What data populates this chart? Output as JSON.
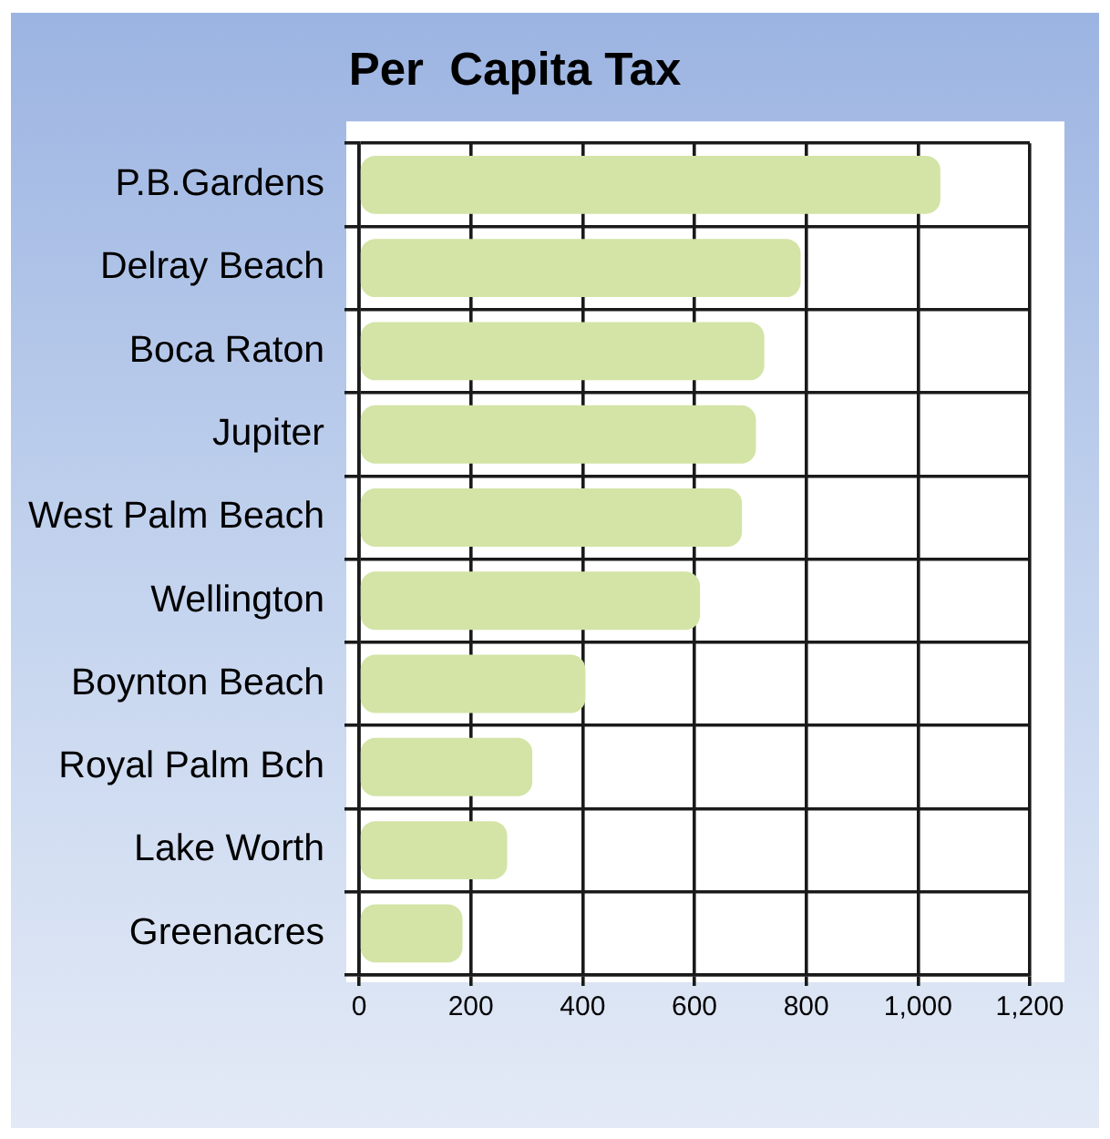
{
  "chart_data": {
    "type": "bar",
    "orientation": "horizontal",
    "title": "Per  Capita Tax",
    "categories": [
      "P.B.Gardens",
      "Delray Beach",
      "Boca Raton",
      "Jupiter",
      "West Palm Beach",
      "Wellington",
      "Boynton Beach",
      "Royal Palm Bch",
      "Lake Worth",
      "Greenacres"
    ],
    "values": [
      1040,
      790,
      725,
      710,
      685,
      610,
      405,
      310,
      265,
      185
    ],
    "color": "#d3e4a6",
    "xlim": [
      0,
      1200
    ],
    "xticks": [
      0,
      200,
      400,
      600,
      800,
      {
        "value": 1000,
        "label": "1,000"
      },
      {
        "value": 1200,
        "label": "1,200"
      }
    ],
    "grid": true
  }
}
